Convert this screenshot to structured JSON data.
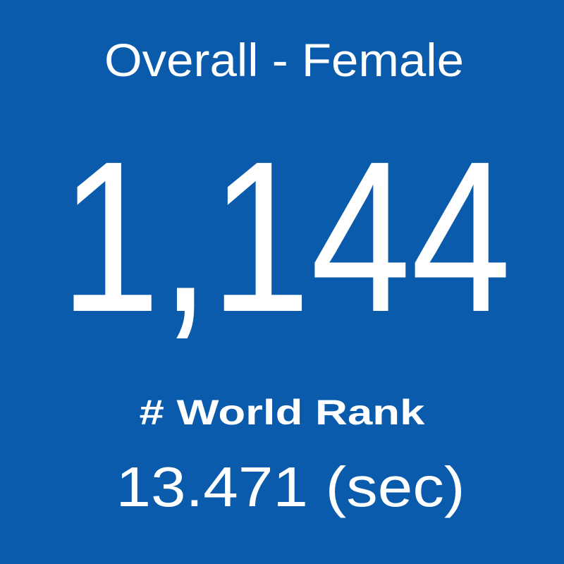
{
  "header": {
    "title": "Overall - Female"
  },
  "stat": {
    "value": "1,144",
    "label": "# World Rank",
    "time": "13.471 (sec)"
  }
}
